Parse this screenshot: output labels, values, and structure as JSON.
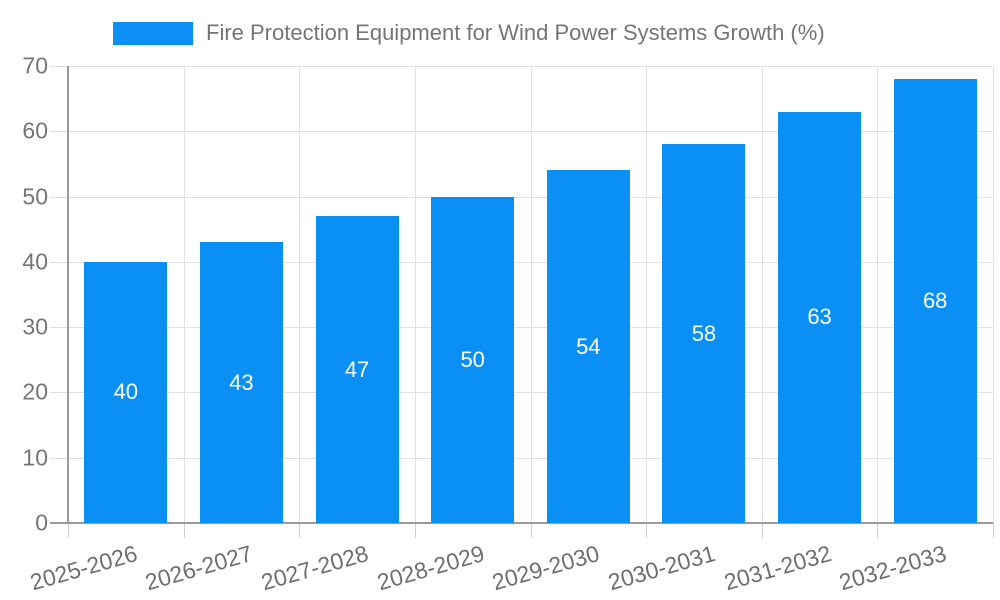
{
  "legend": {
    "label": "Fire Protection Equipment for Wind Power Systems Growth (%)",
    "swatch_color": "#0a90f5"
  },
  "colors": {
    "bar": "#0a90f5",
    "value_label": "#ffffff",
    "grid": "#e2e2e2",
    "axis": "#9a9a9a",
    "tick_text": "#757575"
  },
  "chart_data": {
    "type": "bar",
    "title": "Fire Protection Equipment for Wind Power Systems Growth (%)",
    "categories": [
      "2025-2026",
      "2026-2027",
      "2027-2028",
      "2028-2029",
      "2029-2030",
      "2030-2031",
      "2031-2032",
      "2032-2033"
    ],
    "values": [
      40,
      43,
      47,
      50,
      54,
      58,
      63,
      68
    ],
    "xlabel": "",
    "ylabel": "",
    "ylim": [
      0,
      70
    ],
    "yticks": [
      0,
      10,
      20,
      30,
      40,
      50,
      60,
      70
    ],
    "grid": true,
    "legend_position": "top",
    "value_labels": "inside-center",
    "x_tick_rotation_deg": -16
  }
}
